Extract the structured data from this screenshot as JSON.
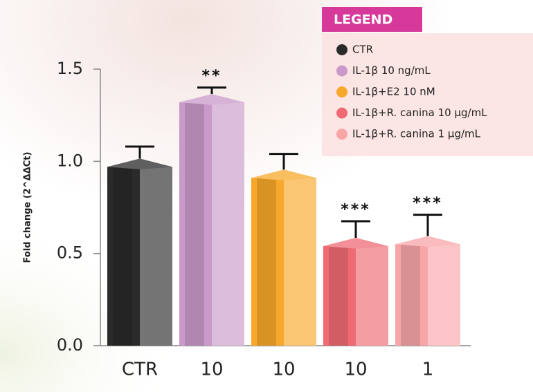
{
  "chart_data": {
    "type": "bar",
    "ylabel": "Fold change (2^ΔΔCt)",
    "categories": [
      "CTR",
      "10",
      "10",
      "10",
      "1"
    ],
    "values": [
      0.97,
      1.32,
      0.91,
      0.54,
      0.55
    ],
    "errors": [
      0.11,
      0.08,
      0.13,
      0.135,
      0.16
    ],
    "annotations": [
      null,
      "**",
      null,
      "***",
      "***"
    ],
    "colors": [
      "#2a2a2a",
      "#c99ac9",
      "#f7a82a",
      "#ef6a73",
      "#f9a5a8"
    ],
    "legend": {
      "title": "LEGEND",
      "labels": [
        "CTR",
        "IL-1β 10 ng/mL",
        "IL-1β+E2 10 nM",
        "IL-1β+R. canina 10 μg/mL",
        "IL-1β+R. canina 1 μg/mL"
      ]
    },
    "ylim": [
      0,
      1.5
    ],
    "yticks": [
      {
        "value": 0,
        "label": "0.0"
      },
      0.5,
      {
        "value": 1,
        "label": "1.0"
      },
      1.5
    ]
  }
}
